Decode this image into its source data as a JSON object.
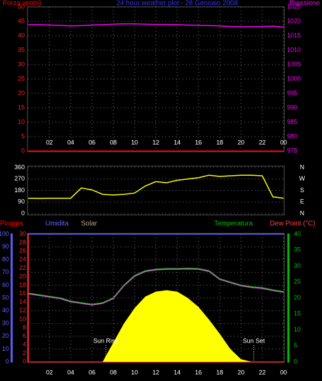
{
  "chart_data": [
    {
      "type": "line",
      "title": "24 hour weather plot - 28 Gennaio 2008",
      "x": [
        0,
        1,
        2,
        3,
        4,
        5,
        6,
        7,
        8,
        9,
        10,
        11,
        12,
        13,
        14,
        15,
        16,
        17,
        18,
        19,
        20,
        21,
        22,
        23,
        24
      ],
      "xlim": [
        0,
        24
      ],
      "xticks": [
        {
          "value": 2,
          "label": "02"
        },
        {
          "value": 4,
          "label": "04"
        },
        {
          "value": 6,
          "label": "06"
        },
        {
          "value": 8,
          "label": "08"
        },
        10,
        12,
        14,
        16,
        18,
        20,
        22,
        {
          "value": 24,
          "label": "00"
        }
      ],
      "ylim": [
        0,
        50
      ],
      "yticks": [
        0,
        5,
        10,
        15,
        20,
        25,
        30,
        35,
        40,
        45,
        50
      ],
      "ytick_color": "#ff2020",
      "y2lim": [
        975,
        1025
      ],
      "y2ticks": [
        975,
        980,
        985,
        990,
        995,
        1000,
        1005,
        1010,
        1015,
        1020,
        1025
      ],
      "y2tick_color": "#ff00ff",
      "grid": true,
      "series": [
        {
          "name": "Forza vento)",
          "color": "#ff0000",
          "values": [
            0,
            0,
            0,
            0,
            0,
            0,
            0,
            0,
            0,
            0,
            0,
            0,
            0,
            0,
            0,
            0,
            0,
            0,
            0,
            0,
            0,
            0,
            0,
            0,
            0
          ]
        },
        {
          "name": "Pressione",
          "color": "#ff00ff",
          "axis": "y2",
          "values": [
            1018.8,
            1018.8,
            1018.7,
            1018.6,
            1018.4,
            1018.5,
            1018.7,
            1018.8,
            1019.0,
            1019.1,
            1019.1,
            1019.0,
            1018.9,
            1018.9,
            1018.8,
            1018.7,
            1018.6,
            1018.5,
            1018.4,
            1018.2,
            1018.1,
            1018.1,
            1018.2,
            1018.3,
            1018.0
          ]
        }
      ]
    },
    {
      "type": "line",
      "x": [
        0,
        1,
        2,
        3,
        4,
        5,
        6,
        7,
        8,
        9,
        10,
        11,
        12,
        13,
        14,
        15,
        16,
        17,
        18,
        19,
        20,
        21,
        22,
        23,
        24
      ],
      "xlim": [
        0,
        24
      ],
      "ylim": [
        0,
        360
      ],
      "yticks": [
        0,
        90,
        180,
        270,
        360
      ],
      "ytick_color": "#ffffff",
      "y2lim": [
        0,
        360
      ],
      "y2ticks": [
        {
          "value": 360,
          "label": "N"
        },
        {
          "value": 270,
          "label": "W"
        },
        {
          "value": 180,
          "label": "S"
        },
        {
          "value": 90,
          "label": "E"
        },
        {
          "value": 0,
          "label": "N"
        }
      ],
      "y2tick_color": "#ffffff",
      "grid": true,
      "series": [
        {
          "color": "#ffff00",
          "values": [
            120,
            118,
            120,
            120,
            120,
            200,
            185,
            150,
            145,
            150,
            160,
            215,
            250,
            240,
            260,
            270,
            280,
            300,
            290,
            295,
            300,
            300,
            295,
            130,
            120
          ]
        }
      ]
    },
    {
      "type": "line",
      "x": [
        0,
        1,
        2,
        3,
        4,
        5,
        6,
        7,
        8,
        9,
        10,
        11,
        12,
        13,
        14,
        15,
        16,
        17,
        18,
        19,
        20,
        21,
        22,
        23,
        24
      ],
      "xlim": [
        0,
        24
      ],
      "xticks": [
        {
          "value": 2,
          "label": "02"
        },
        {
          "value": 4,
          "label": "04"
        },
        {
          "value": 6,
          "label": "06"
        },
        {
          "value": 8,
          "label": "08"
        },
        10,
        12,
        14,
        16,
        18,
        20,
        22,
        {
          "value": 24,
          "label": "00"
        }
      ],
      "ylim": [
        0,
        100
      ],
      "yticks": [
        0,
        10,
        20,
        30,
        40,
        50,
        60,
        70,
        80,
        90,
        100
      ],
      "ytick_color": "#6060ff",
      "y3lim": [
        0,
        30
      ],
      "y3ticks": [
        0,
        2,
        4,
        6,
        8,
        10,
        12,
        14,
        16,
        18,
        20,
        22,
        24,
        26,
        28,
        30
      ],
      "y3tick_color": "#ff2020",
      "y2lim": [
        0,
        40
      ],
      "y2ticks": [
        0,
        5,
        10,
        15,
        20,
        25,
        30,
        35,
        40
      ],
      "y2tick_color": "#00c000",
      "grid": true,
      "series": [
        {
          "name": "Pioggia",
          "color": "#ff0000",
          "axis": "y3",
          "values": [
            0,
            0,
            0,
            0,
            0,
            0,
            0,
            0,
            0,
            0,
            0,
            0,
            0,
            0,
            0,
            0,
            0,
            0,
            0,
            0,
            0,
            0,
            0,
            0,
            0
          ]
        },
        {
          "name": "Umidita",
          "color": "#6060ff",
          "values": [
            100,
            100,
            100,
            100,
            100,
            100,
            100,
            100,
            100,
            100,
            100,
            100,
            100,
            100,
            100,
            100,
            100,
            100,
            100,
            100,
            100,
            100,
            100,
            100,
            100
          ]
        },
        {
          "name": "Solar",
          "color": "#ffff00",
          "text_color": "#b0a880",
          "area": true,
          "values": [
            0,
            0,
            0,
            0,
            0,
            0,
            0,
            0,
            15,
            30,
            42,
            51,
            55,
            56,
            55,
            50,
            43,
            33,
            22,
            10,
            2,
            0,
            0,
            0,
            0
          ]
        },
        {
          "name": "Temperatura",
          "color": "#00c000",
          "axis": "y2",
          "values": [
            21.5,
            21,
            20.5,
            20,
            19,
            18.5,
            18,
            18.5,
            20,
            24,
            27,
            28.5,
            29,
            29.2,
            29.2,
            29.3,
            29.2,
            28.5,
            26,
            25,
            24,
            23.5,
            23.2,
            22.5,
            22
          ]
        },
        {
          "name": "Dew Point (°C)",
          "color": "#c060c0",
          "text_color": "#ff4040",
          "axis": "y2",
          "values": [
            21.3,
            20.8,
            20.3,
            19.8,
            18.8,
            18.3,
            17.8,
            18.3,
            19.8,
            23.8,
            26.8,
            28.3,
            28.8,
            29,
            29,
            29.1,
            29,
            28.3,
            25.8,
            24.8,
            23.8,
            23.3,
            23,
            22.3,
            21.8
          ]
        }
      ],
      "annotations": [
        {
          "text": "Sun Rise",
          "x": 7.3
        },
        {
          "text": "Sun Set",
          "x": 21.2
        }
      ]
    }
  ]
}
